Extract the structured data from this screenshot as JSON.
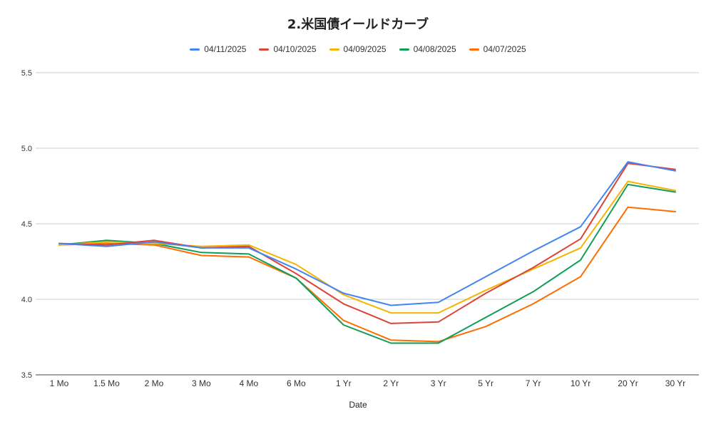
{
  "chart_data": {
    "type": "line",
    "title": "2.米国債イールドカーブ",
    "xlabel": "Date",
    "ylabel": "",
    "categories": [
      "1 Mo",
      "1.5 Mo",
      "2 Mo",
      "3 Mo",
      "4 Mo",
      "6 Mo",
      "1 Yr",
      "2 Yr",
      "3 Yr",
      "5 Yr",
      "7 Yr",
      "10 Yr",
      "20 Yr",
      "30 Yr"
    ],
    "ylim": [
      3.5,
      5.5
    ],
    "yticks": [
      "3.5",
      "4.0",
      "4.5",
      "5.0",
      "5.5"
    ],
    "grid": true,
    "legend_position": "top",
    "series": [
      {
        "name": "04/11/2025",
        "color": "#4285f4",
        "values": [
          4.37,
          4.35,
          4.38,
          4.34,
          4.34,
          4.2,
          4.04,
          3.96,
          3.98,
          4.15,
          4.32,
          4.48,
          4.91,
          4.85
        ]
      },
      {
        "name": "04/10/2025",
        "color": "#db4437",
        "values": [
          4.37,
          4.36,
          4.39,
          4.34,
          4.35,
          4.17,
          3.97,
          3.84,
          3.85,
          4.04,
          4.21,
          4.4,
          4.9,
          4.86
        ]
      },
      {
        "name": "04/09/2025",
        "color": "#f4b400",
        "values": [
          4.36,
          4.38,
          4.37,
          4.35,
          4.36,
          4.23,
          4.03,
          3.91,
          3.91,
          4.06,
          4.2,
          4.34,
          4.78,
          4.72
        ]
      },
      {
        "name": "04/08/2025",
        "color": "#0f9d58",
        "values": [
          4.36,
          4.39,
          4.37,
          4.31,
          4.3,
          4.14,
          3.83,
          3.71,
          3.71,
          3.88,
          4.05,
          4.26,
          4.76,
          4.71
        ]
      },
      {
        "name": "04/07/2025",
        "color": "#ff6d01",
        "values": [
          4.36,
          4.37,
          4.36,
          4.29,
          4.28,
          4.14,
          3.86,
          3.73,
          3.72,
          3.82,
          3.97,
          4.15,
          4.61,
          4.58
        ]
      }
    ]
  }
}
